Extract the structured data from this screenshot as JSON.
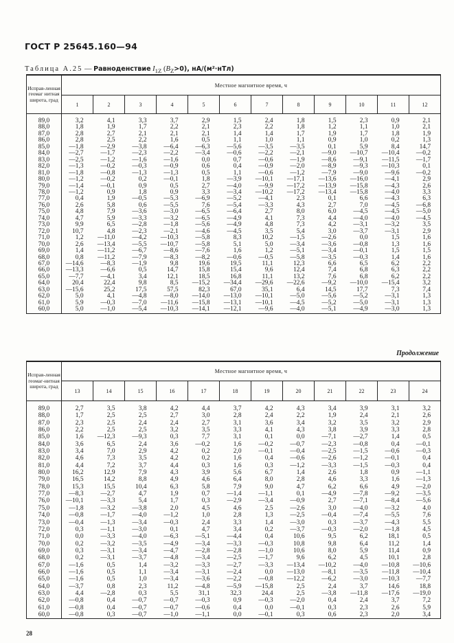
{
  "document": {
    "title": "ГОСТ Р 25645.160—94",
    "page_number": "28"
  },
  "caption": {
    "label": "Таблица А.25",
    "sep": "—",
    "name": "Равноденствие",
    "symbol": "I",
    "symbol_sub": "1Z",
    "cond_open": "(",
    "cond_var": "B",
    "cond_sub": "Z",
    "cond_rest": ">0), нА/(м²·нТл)"
  },
  "continuation_label": "Продолжение",
  "tables": [
    {
      "lat_header": "Исправ-ленная геомаг нитная широта, град",
      "time_header": "Местное магнитное время, ч",
      "hours": [
        "1",
        "2",
        "3",
        "4",
        "5",
        "6",
        "7",
        "8",
        "9",
        "10",
        "11",
        "12"
      ],
      "rows": [
        {
          "lat": "89,0",
          "values": [
            "3,2",
            "4,1",
            "3,3",
            "3,7",
            "2,9",
            "1,5",
            "2,4",
            "1,8",
            "1,5",
            "2,3",
            "0,9",
            "2,1"
          ]
        },
        {
          "lat": "88,0",
          "values": [
            "1,8",
            "1,9",
            "1,7",
            "2,2",
            "2,1",
            "2,3",
            "2,2",
            "1,8",
            "1,2",
            "1,1",
            "1,0",
            "2,1"
          ]
        },
        {
          "lat": "87,0",
          "values": [
            "2,8",
            "2,7",
            "2,1",
            "2,1",
            "2,1",
            "1,4",
            "1,4",
            "1,7",
            "1,9",
            "1,7",
            "1,8",
            "1,9"
          ]
        },
        {
          "lat": "86,0",
          "values": [
            "2,8",
            "2,5",
            "2,2",
            "1,6",
            "0,5",
            "1,1",
            "1,0",
            "1,1",
            "0,9",
            "1,0",
            "0,2",
            "1,3"
          ]
        },
        {
          "lat": "85,0",
          "values": [
            "—1,8",
            "—2,9",
            "—3,8",
            "—6,4",
            "—6,3",
            "—5,6",
            "—3,5",
            "—3,5",
            "0,1",
            "5,9",
            "8,4",
            "14,7"
          ]
        },
        {
          "lat": "84,0",
          "values": [
            "—2,7",
            "—1,7",
            "—2,3",
            "—2,2",
            "—3,4",
            "—0,6",
            "—2,2",
            "—2,1",
            "—9,0",
            "—10,7",
            "—10,4",
            "—0,2"
          ]
        },
        {
          "lat": "83,0",
          "values": [
            "—2,5",
            "—1,2",
            "—1,6",
            "—1,6",
            "0,0",
            "0,7",
            "—0,6",
            "—1,9",
            "—8,6",
            "—9,1",
            "—11,5",
            "—1,7"
          ]
        },
        {
          "lat": "82,0",
          "values": [
            "—1,3",
            "—0,2",
            "—0,3",
            "—0,9",
            "0,6",
            "0,4",
            "—0,9",
            "—2,0",
            "—8,9",
            "—9,3",
            "—10,3",
            "0,1"
          ]
        },
        {
          "lat": "81,0",
          "values": [
            "—1,8",
            "—0,8",
            "—1,3",
            "—1,3",
            "0,5",
            "1,1",
            "—0,6",
            "—1,2",
            "—7,9",
            "—9,0",
            "—9,6",
            "—0,2"
          ]
        },
        {
          "lat": "80,0",
          "values": [
            "—1,2",
            "—0,2",
            "0,2",
            "—0,1",
            "1,8",
            "—3,9",
            "—10,1",
            "—17,1",
            "—13,6",
            "—16,0",
            "—4,1",
            "2,9"
          ]
        },
        {
          "lat": "79,0",
          "values": [
            "—1,4",
            "—0,1",
            "0,9",
            "0,5",
            "2,7",
            "—4,0",
            "—9,9",
            "—17,2",
            "—13,9",
            "—15,8",
            "—4,3",
            "2,6"
          ]
        },
        {
          "lat": "78,0",
          "values": [
            "—1,2",
            "0,9",
            "1,8",
            "0,9",
            "3,3",
            "—3,4",
            "—10,2",
            "—17,2",
            "—13,4",
            "—15,8",
            "—4,0",
            "3,3"
          ]
        },
        {
          "lat": "77,0",
          "values": [
            "0,4",
            "1,9",
            "—0,5",
            "—5,3",
            "—6,9",
            "—5,2",
            "—4,1",
            "2,3",
            "0,1",
            "6,6",
            "—4,3",
            "6,3"
          ]
        },
        {
          "lat": "76,0",
          "values": [
            "2,6",
            "5,8",
            "0,6",
            "—5,5",
            "7,6",
            "—5,4",
            "—3,3",
            "4,3",
            "2,7",
            "7,0",
            "—4,5",
            "—6,8"
          ]
        },
        {
          "lat": "75,0",
          "values": [
            "4,8",
            "7,9",
            "—3,6",
            "—3,0",
            "—6,5",
            "—6,4",
            "2,7",
            "8,0",
            "6,0",
            "—4,5",
            "—4,5",
            "—5,0"
          ]
        },
        {
          "lat": "74,0",
          "values": [
            "4,7",
            "5,9",
            "—3,3",
            "—3,2",
            "—6,5",
            "—4,9",
            "4,1",
            "7,3",
            "4,4",
            "—4,0",
            "—4,0",
            "—4,5"
          ]
        },
        {
          "lat": "73,0",
          "values": [
            "9,9",
            "6,5",
            "—2,8",
            "—1,8",
            "—5,6",
            "—4,9",
            "4,8",
            "7,3",
            "4,2",
            "—3,1",
            "—3,2",
            "3,5"
          ]
        },
        {
          "lat": "72,0",
          "values": [
            "10,7",
            "4,8",
            "—2,3",
            "—2,1",
            "—4,6",
            "—4,5",
            "3,5",
            "5,4",
            "3,0",
            "—3,7",
            "—3,1",
            "2,9"
          ]
        },
        {
          "lat": "71,0",
          "values": [
            "1,2",
            "—11,0",
            "—4,2",
            "—10,3",
            "—5,8",
            "8,3",
            "10,2",
            "—1,5",
            "—2,6",
            "0,0",
            "1,5",
            "1,6"
          ]
        },
        {
          "lat": "70,0",
          "values": [
            "2,6",
            "—13,4",
            "—5,5",
            "—10,7",
            "—5,8",
            "5,1",
            "5,0",
            "—3,4",
            "—3,6",
            "—0,8",
            "1,3",
            "1,6"
          ]
        },
        {
          "lat": "69,0",
          "values": [
            "1,4",
            "—11,2",
            "—6,7",
            "—8,6",
            "—7,6",
            "1,6",
            "1,2",
            "—5,1",
            "—3,4",
            "—0,1",
            "1,5",
            "1,5"
          ]
        },
        {
          "lat": "68,0",
          "values": [
            "0,8",
            "—11,2",
            "—7,9",
            "—8,3",
            "—8,2",
            "—0,6",
            "—0,5",
            "—5,8",
            "—3,5",
            "—0,3",
            "1,4",
            "1,6"
          ]
        },
        {
          "lat": "67,0",
          "values": [
            "—14,6",
            "—8,3",
            "—1,9",
            "9,8",
            "19,6",
            "19,5",
            "11,1",
            "12,3",
            "6,6",
            "6,5",
            "6,2",
            "2,2"
          ]
        },
        {
          "lat": "66,0",
          "values": [
            "—13,3",
            "—6,6",
            "0,5",
            "14,7",
            "15,8",
            "15,4",
            "9,6",
            "12,4",
            "7,4",
            "6,8",
            "6,3",
            "2,2"
          ]
        },
        {
          "lat": "65,0",
          "values": [
            "—7,7",
            "—4,1",
            "3,4",
            "12,1",
            "18,5",
            "16,8",
            "11,1",
            "13,2",
            "7,6",
            "6,8",
            "6,2",
            "2,2"
          ]
        },
        {
          "lat": "64,0",
          "values": [
            "20,4",
            "22,4",
            "9,8",
            "8,5",
            "—15,2",
            "—34,4",
            "—29,6",
            "—22,6",
            "—9,2",
            "—10,0",
            "—15,4",
            "3,2"
          ]
        },
        {
          "lat": "63,0",
          "values": [
            "—15,6",
            "25,2",
            "17,5",
            "57,5",
            "82,3",
            "67,0",
            "35,1",
            "6,4",
            "14,5",
            "17,7",
            "7,3",
            "7,4"
          ]
        },
        {
          "lat": "62,0",
          "values": [
            "5,0",
            "4,1",
            "—4,8",
            "—8,0",
            "—14,0",
            "—13,0",
            "—10,1",
            "—5,0",
            "—5,6",
            "—5,2",
            "—3,1",
            "1,3"
          ]
        },
        {
          "lat": "61,0",
          "values": [
            "5,9",
            "—0,3",
            "—7,0",
            "—11,6",
            "—15,8",
            "—13,1",
            "—10,1",
            "—4,5",
            "—5,2",
            "—5,0",
            "—3,1",
            "1,3"
          ]
        },
        {
          "lat": "60,0",
          "values": [
            "5,0",
            "—1,0",
            "—5,4",
            "—10,3",
            "—14,1",
            "—12,1",
            "—9,6",
            "—4,0",
            "—5,1",
            "—4,9",
            "—3,0",
            "1,3"
          ]
        }
      ]
    },
    {
      "lat_header": "Исправ-ленная геомаг-нитная широта, град",
      "time_header": "Местное магнитное время, ч",
      "hours": [
        "13",
        "14",
        "15",
        "16",
        "17",
        "18",
        "19",
        "20",
        "21",
        "22",
        "23",
        "24"
      ],
      "rows": [
        {
          "lat": "89,0",
          "values": [
            "2,7",
            "3,5",
            "3,8",
            "4,2",
            "4,4",
            "3,7",
            "4,2",
            "4,3",
            "3,4",
            "3,9",
            "3,1",
            "3,2"
          ]
        },
        {
          "lat": "88,0",
          "values": [
            "1,7",
            "2,5",
            "2,5",
            "2,7",
            "3,0",
            "2,8",
            "2,4",
            "2,2",
            "1,9",
            "2,4",
            "2,1",
            "2,6"
          ]
        },
        {
          "lat": "87,0",
          "values": [
            "2,3",
            "2,5",
            "2,4",
            "2,4",
            "2,7",
            "3,1",
            "3,6",
            "3,4",
            "3,2",
            "3,5",
            "3,2",
            "2,9"
          ]
        },
        {
          "lat": "86,0",
          "values": [
            "2,2",
            "2,5",
            "2,5",
            "3,2",
            "3,5",
            "3,3",
            "4,1",
            "4,3",
            "3,8",
            "3,9",
            "3,3",
            "2,8"
          ]
        },
        {
          "lat": "85,0",
          "values": [
            "1,6",
            "—12,3",
            "—9,3",
            "0,3",
            "7,7",
            "3,1",
            "0,1",
            "0,0",
            "—7,1",
            "—2,7",
            "1,4",
            "0,5"
          ]
        },
        {
          "lat": "84,0",
          "values": [
            "3,6",
            "6,5",
            "2,4",
            "3,6",
            "—0,2",
            "1,6",
            "—0,2",
            "—0,7",
            "—2,3",
            "—0,8",
            "0,4",
            "—0,1"
          ]
        },
        {
          "lat": "83,0",
          "values": [
            "3,4",
            "7,0",
            "2,9",
            "4,2",
            "0,2",
            "2,0",
            "—0,1",
            "—0,4",
            "—2,5",
            "—1,5",
            "—0,6",
            "—0,3"
          ]
        },
        {
          "lat": "82,0",
          "values": [
            "4,6",
            "7,3",
            "3,5",
            "4,2",
            "0,2",
            "1,6",
            "0,4",
            "—0,6",
            "—2,6",
            "—1,2",
            "—0,1",
            "0,4"
          ]
        },
        {
          "lat": "81,0",
          "values": [
            "4,4",
            "7,2",
            "3,7",
            "4,4",
            "0,3",
            "1,6",
            "0,3",
            "—1,2",
            "—3,3",
            "—1,5",
            "—0,3",
            "0,4"
          ]
        },
        {
          "lat": "80,0",
          "values": [
            "16,2",
            "12,9",
            "7,9",
            "4,3",
            "3,9",
            "5,6",
            "6,7",
            "1,4",
            "2,6",
            "1,8",
            "0,9",
            "—1,1"
          ]
        },
        {
          "lat": "79,0",
          "values": [
            "16,5",
            "14,2",
            "8,8",
            "4,9",
            "4,6",
            "6,4",
            "8,0",
            "2,8",
            "4,6",
            "3,3",
            "1,6",
            "—1,3"
          ]
        },
        {
          "lat": "78,0",
          "values": [
            "15,3",
            "15,5",
            "10,4",
            "6,3",
            "5,8",
            "7,9",
            "9,0",
            "4,7",
            "6,2",
            "6,6",
            "4,9",
            "—2,0"
          ]
        },
        {
          "lat": "77,0",
          "values": [
            "—8,3",
            "—2,7",
            "4,7",
            "1,9",
            "0,7",
            "—1,4",
            "—1,1",
            "0,1",
            "—4,9",
            "—7,8",
            "—9,2",
            "—3,5"
          ]
        },
        {
          "lat": "76,0",
          "values": [
            "—10,1",
            "—3,3",
            "5,4",
            "1,7",
            "0,3",
            "—2,9",
            "—3,4",
            "—0,9",
            "2,7",
            "—7,1",
            "—8,4",
            "—5,6"
          ]
        },
        {
          "lat": "75,0",
          "values": [
            "—1,8",
            "—3,2",
            "—3,8",
            "2,0",
            "4,5",
            "4,6",
            "2,5",
            "—2,6",
            "3,0",
            "—4,0",
            "—3,2",
            "4,0"
          ]
        },
        {
          "lat": "74,0",
          "values": [
            "—0,8",
            "—1,7",
            "—4,0",
            "—1,2",
            "1,0",
            "2,8",
            "1,3",
            "—2,5",
            "—0,4",
            "—7,4",
            "—5,5",
            "7,6"
          ]
        },
        {
          "lat": "73,0",
          "values": [
            "—0,4",
            "—1,3",
            "—3,4",
            "—0,3",
            "2,4",
            "3,3",
            "1,4",
            "—3,0",
            "0,3",
            "—3,7",
            "—4,3",
            "5,5"
          ]
        },
        {
          "lat": "72,0",
          "values": [
            "0,3",
            "—1,1",
            "—3,0",
            "0,1",
            "4,7",
            "3,4",
            "0,2",
            "—3,7",
            "—0,3",
            "—2,0",
            "—1,8",
            "4,5"
          ]
        },
        {
          "lat": "71,0",
          "values": [
            "0,0",
            "—3,3",
            "—4,0",
            "—6,3",
            "—5,1",
            "—4,4",
            "0,4",
            "10,6",
            "9,5",
            "6,2",
            "18,1",
            "0,5"
          ]
        },
        {
          "lat": "70,0",
          "values": [
            "0,2",
            "—3,2",
            "—3,5",
            "—4,9",
            "—3,4",
            "—3,3",
            "—0,3",
            "10,8",
            "9,8",
            "6,4",
            "11,2",
            "1,4"
          ]
        },
        {
          "lat": "69,0",
          "values": [
            "0,3",
            "—3,1",
            "—3,4",
            "—4,7",
            "—2,8",
            "—2,8",
            "—1,0",
            "10,6",
            "8,0",
            "5,9",
            "11,4",
            "0,9"
          ]
        },
        {
          "lat": "68,0",
          "values": [
            "0,2",
            "—3,1",
            "—3,7",
            "—4,8",
            "—3,4",
            "—2,5",
            "—1,7",
            "9,6",
            "6,2",
            "4,5",
            "10,1",
            "2,8"
          ]
        },
        {
          "lat": "67,0",
          "values": [
            "—1,6",
            "0,5",
            "1,4",
            "—3,2",
            "—3,3",
            "—2,7",
            "—3,3",
            "—13,4",
            "—10,2",
            "—4,0",
            "—10,8",
            "—10,6"
          ]
        },
        {
          "lat": "66,0",
          "values": [
            "—1,6",
            "0,5",
            "1,1",
            "—3,4",
            "—3,1",
            "—2,4",
            "0,0",
            "—13,0",
            "—8,1",
            "—3,5",
            "—11,8",
            "—10,4"
          ]
        },
        {
          "lat": "65,0",
          "values": [
            "—1,6",
            "0,5",
            "1,0",
            "—3,4",
            "—3,6",
            "—2,2",
            "—0,8",
            "—12,2",
            "—6,2",
            "—3,0",
            "—10,3",
            "—7,7"
          ]
        },
        {
          "lat": "64,0",
          "values": [
            "—3,7",
            "0,8",
            "2,3",
            "11,2",
            "—4,8",
            "—5,9",
            "—15,8",
            "2,5",
            "2,4",
            "3,7",
            "14,6",
            "18,8"
          ]
        },
        {
          "lat": "63,0",
          "values": [
            "4,4",
            "—2,8",
            "0,3",
            "5,5",
            "31,1",
            "32,3",
            "24,4",
            "2,5",
            "—3,8",
            "—11,8",
            "—17,6",
            "—19,0"
          ]
        },
        {
          "lat": "62,0",
          "values": [
            "—0,8",
            "0,4",
            "—0,7",
            "—0,7",
            "—0,3",
            "0,9",
            "—0,3",
            "—2,0",
            "0,4",
            "2,4",
            "3,7",
            "7,2"
          ]
        },
        {
          "lat": "61,0",
          "values": [
            "—0,8",
            "0,4",
            "—0,7",
            "—0,7",
            "—0,6",
            "0,4",
            "0,0",
            "—0,1",
            "0,3",
            "2,3",
            "2,6",
            "5,9"
          ]
        },
        {
          "lat": "60,0",
          "values": [
            "—0,8",
            "0,3",
            "—0,7",
            "—1,0",
            "—1,1",
            "0,0",
            "—0,1",
            "0,3",
            "0,6",
            "2,3",
            "2,0",
            "3,4"
          ]
        }
      ]
    }
  ]
}
